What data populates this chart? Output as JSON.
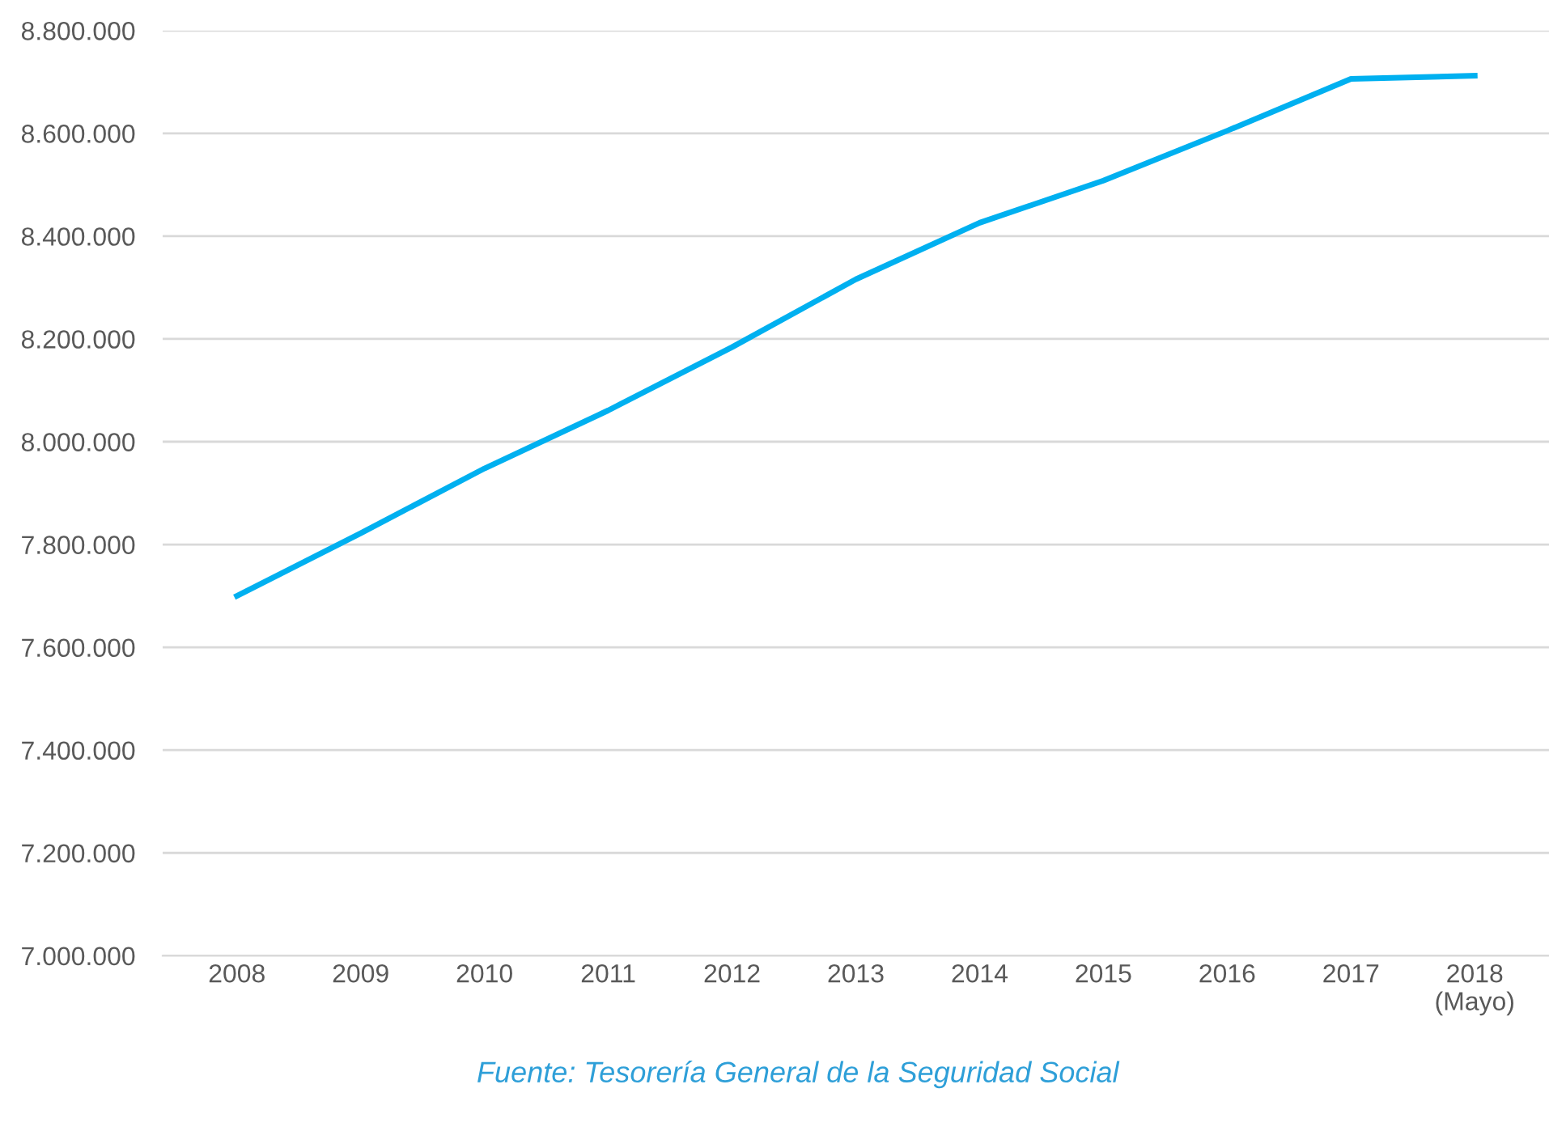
{
  "chart_data": {
    "type": "line",
    "categories": [
      "2008",
      "2009",
      "2010",
      "2011",
      "2012",
      "2013",
      "2014",
      "2015",
      "2016",
      "2017",
      "2018\n(Mayo)"
    ],
    "series": [
      {
        "color": "#00b0f0",
        "values": [
          7700000,
          7822000,
          7948000,
          8061000,
          8184000,
          8316000,
          8426000,
          8508000,
          8605000,
          8706000,
          8712000
        ]
      }
    ],
    "ylim": [
      7000000,
      8800000
    ],
    "yticks": [
      {
        "value": 7000000,
        "label": "7.000.000"
      },
      {
        "value": 7200000,
        "label": "7.200.000"
      },
      {
        "value": 7400000,
        "label": "7.400.000"
      },
      {
        "value": 7600000,
        "label": "7.600.000"
      },
      {
        "value": 7800000,
        "label": "7.800.000"
      },
      {
        "value": 8000000,
        "label": "8.000.000"
      },
      {
        "value": 8200000,
        "label": "8.200.000"
      },
      {
        "value": 8400000,
        "label": "8.400.000"
      },
      {
        "value": 8600000,
        "label": "8.600.000"
      },
      {
        "value": 8800000,
        "label": "8.800.000"
      }
    ],
    "grid": "y",
    "marker": "none",
    "line_style": "solid",
    "annotations": [
      "Fuente: Tesorería General de la Seguridad Social"
    ]
  }
}
